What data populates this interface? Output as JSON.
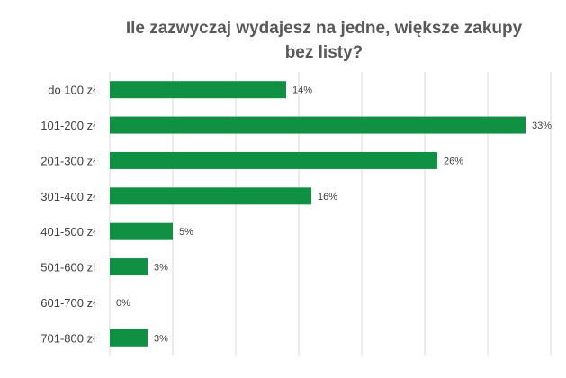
{
  "chart_data": {
    "type": "bar",
    "orientation": "horizontal",
    "title_lines": [
      "Ile zazwyczaj wydajesz na jedne, większe zakupy",
      "bez listy?"
    ],
    "categories": [
      "do 100 zł",
      "101-200 zł",
      "201-300 zł",
      "301-400 zł",
      "401-500 zł",
      "501-600 zl",
      "601-700 zł",
      "701-800 zł"
    ],
    "values": [
      14,
      33,
      26,
      16,
      5,
      3,
      0,
      3
    ],
    "value_labels": [
      "14%",
      "33%",
      "26%",
      "16%",
      "5%",
      "3%",
      "0%",
      "3%"
    ],
    "unit": "%",
    "xlim": [
      0,
      35
    ],
    "grid": true,
    "legend": "none",
    "bar_color": "#109042",
    "grid_color": "#d9d9d9"
  }
}
